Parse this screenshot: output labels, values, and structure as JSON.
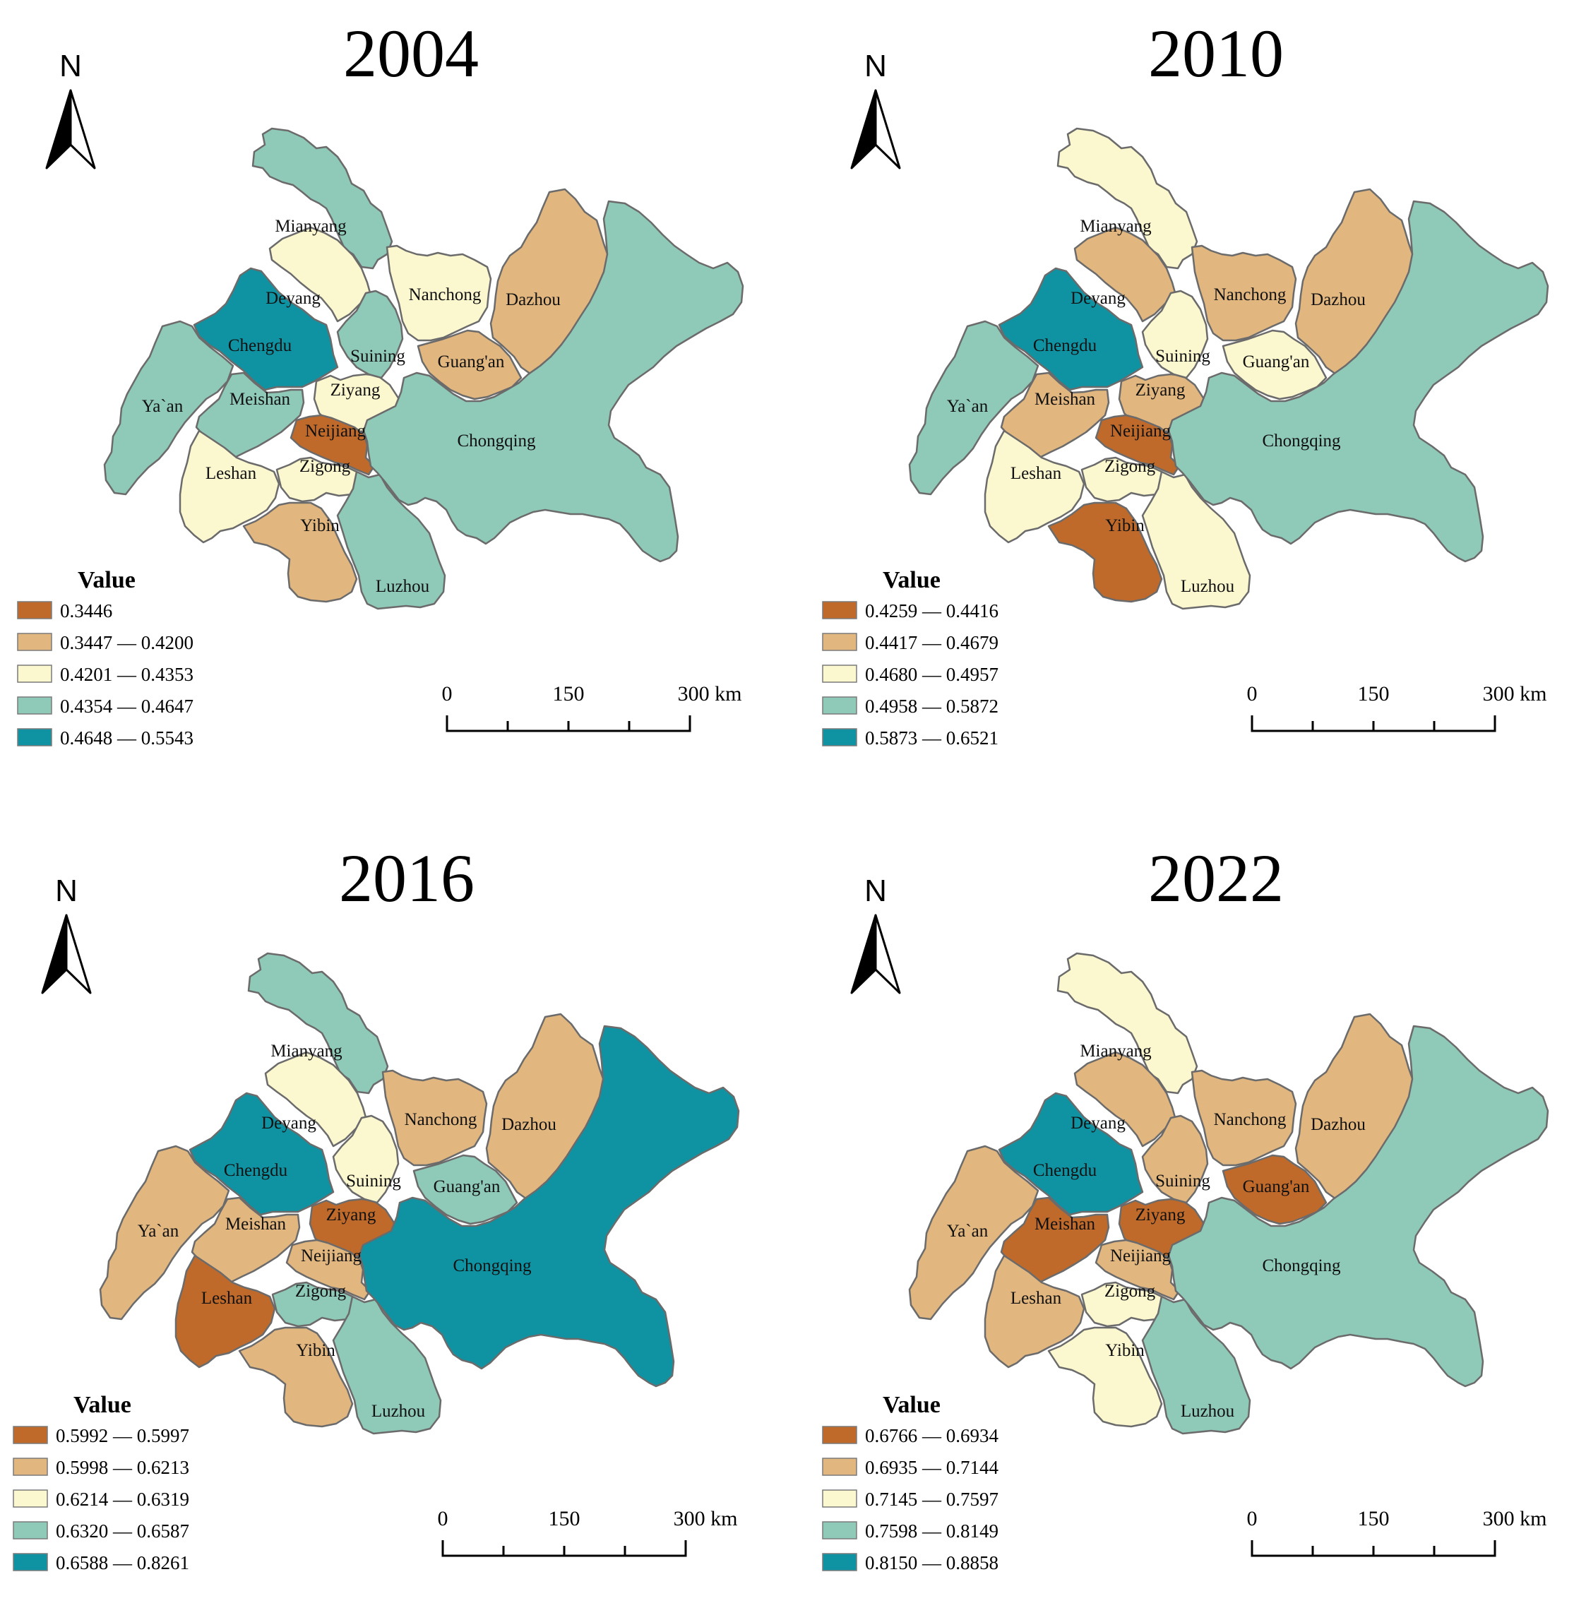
{
  "map": {
    "north_label": "N",
    "legend_title": "Value",
    "scale": {
      "ticks": [
        "0",
        "150",
        "300 km"
      ]
    },
    "palette": [
      "#bf6a2a",
      "#e2b67f",
      "#fbf7cf",
      "#8fc9b8",
      "#0f93a3"
    ],
    "regions": [
      "Mianyang",
      "Deyang",
      "Chengdu",
      "Ya`an",
      "Meishan",
      "Leshan",
      "Ziyang",
      "Suining",
      "Neijiang",
      "Zigong",
      "Yibin",
      "Luzhou",
      "Nanchong",
      "Guang'an",
      "Dazhou",
      "Chongqing"
    ],
    "panels": [
      {
        "year": "2004",
        "legend": [
          "0.3446",
          "0.3447 — 0.4200",
          "0.4201 — 0.4353",
          "0.4354 — 0.4647",
          "0.4648 — 0.5543"
        ],
        "classes": {
          "Mianyang": 3,
          "Deyang": 2,
          "Chengdu": 4,
          "Ya`an": 3,
          "Meishan": 3,
          "Leshan": 2,
          "Ziyang": 2,
          "Suining": 3,
          "Neijiang": 0,
          "Zigong": 2,
          "Yibin": 1,
          "Luzhou": 3,
          "Nanchong": 2,
          "Guang'an": 1,
          "Dazhou": 1,
          "Chongqing": 3
        }
      },
      {
        "year": "2010",
        "legend": [
          "0.4259 — 0.4416",
          "0.4417 — 0.4679",
          "0.4680 — 0.4957",
          "0.4958 — 0.5872",
          "0.5873 — 0.6521"
        ],
        "classes": {
          "Mianyang": 2,
          "Deyang": 1,
          "Chengdu": 4,
          "Ya`an": 3,
          "Meishan": 1,
          "Leshan": 2,
          "Ziyang": 1,
          "Suining": 2,
          "Neijiang": 0,
          "Zigong": 2,
          "Yibin": 0,
          "Luzhou": 2,
          "Nanchong": 1,
          "Guang'an": 2,
          "Dazhou": 1,
          "Chongqing": 3
        }
      },
      {
        "year": "2016",
        "legend": [
          "0.5992 — 0.5997",
          "0.5998 — 0.6213",
          "0.6214 — 0.6319",
          "0.6320 — 0.6587",
          "0.6588 — 0.8261"
        ],
        "classes": {
          "Mianyang": 3,
          "Deyang": 2,
          "Chengdu": 4,
          "Ya`an": 1,
          "Meishan": 1,
          "Leshan": 0,
          "Ziyang": 0,
          "Suining": 2,
          "Neijiang": 1,
          "Zigong": 3,
          "Yibin": 1,
          "Luzhou": 3,
          "Nanchong": 1,
          "Guang'an": 3,
          "Dazhou": 1,
          "Chongqing": 4
        }
      },
      {
        "year": "2022",
        "legend": [
          "0.6766 — 0.6934",
          "0.6935 — 0.7144",
          "0.7145 — 0.7597",
          "0.7598 — 0.8149",
          "0.8150 — 0.8858"
        ],
        "classes": {
          "Mianyang": 2,
          "Deyang": 1,
          "Chengdu": 4,
          "Ya`an": 1,
          "Meishan": 0,
          "Leshan": 1,
          "Ziyang": 0,
          "Suining": 1,
          "Neijiang": 1,
          "Zigong": 2,
          "Yibin": 2,
          "Luzhou": 3,
          "Nanchong": 1,
          "Guang'an": 0,
          "Dazhou": 1,
          "Chongqing": 3
        }
      }
    ]
  }
}
